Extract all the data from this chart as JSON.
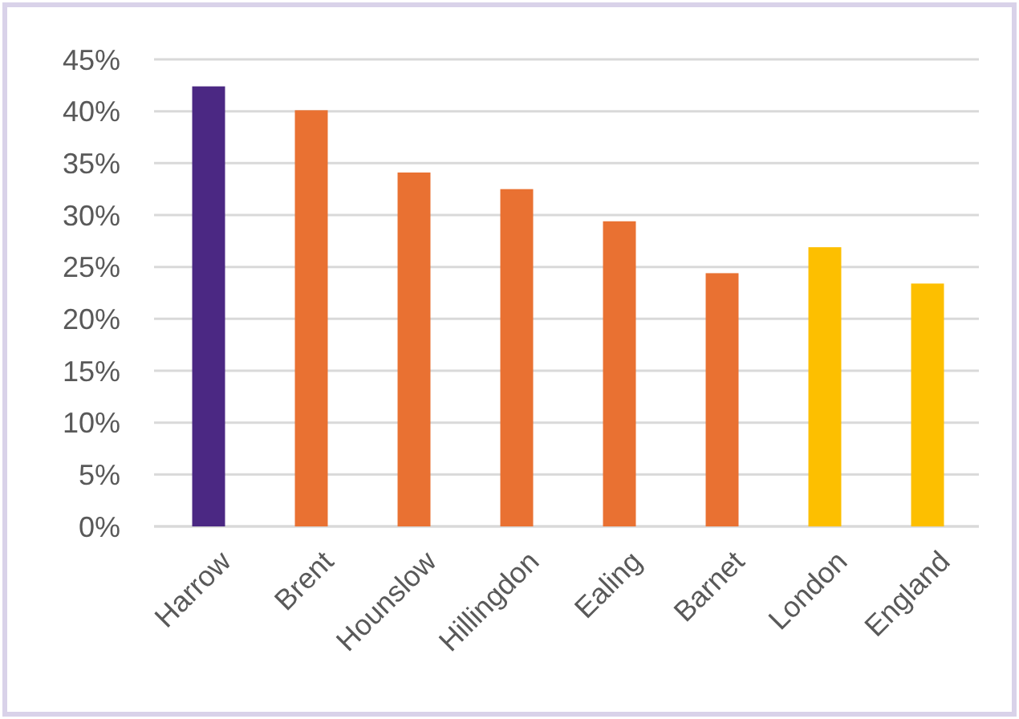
{
  "chart_data": {
    "type": "bar",
    "categories": [
      "Harrow",
      "Brent",
      "Hounslow",
      "Hillingdon",
      "Ealing",
      "Barnet",
      "London",
      "England"
    ],
    "values": [
      42.4,
      40.1,
      34.1,
      32.5,
      29.4,
      24.4,
      26.9,
      23.4
    ],
    "colors": [
      "#4b2883",
      "#e97132",
      "#e97132",
      "#e97132",
      "#e97132",
      "#e97132",
      "#fdbf00",
      "#fdbf00"
    ],
    "ylim": [
      0,
      45
    ],
    "yticks": [
      {
        "value": 0,
        "label": "0%"
      },
      {
        "value": 5,
        "label": "5%"
      },
      {
        "value": 10,
        "label": "10%"
      },
      {
        "value": 15,
        "label": "15%"
      },
      {
        "value": 20,
        "label": "20%"
      },
      {
        "value": 25,
        "label": "25%"
      },
      {
        "value": 30,
        "label": "30%"
      },
      {
        "value": 35,
        "label": "35%"
      },
      {
        "value": 40,
        "label": "40%"
      },
      {
        "value": 45,
        "label": "45%"
      }
    ],
    "grid": "y"
  }
}
